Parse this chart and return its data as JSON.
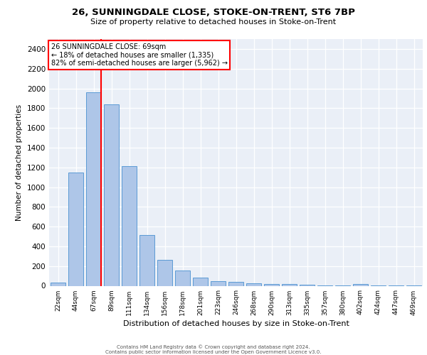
{
  "title": "26, SUNNINGDALE CLOSE, STOKE-ON-TRENT, ST6 7BP",
  "subtitle": "Size of property relative to detached houses in Stoke-on-Trent",
  "xlabel": "Distribution of detached houses by size in Stoke-on-Trent",
  "ylabel": "Number of detached properties",
  "categories": [
    "22sqm",
    "44sqm",
    "67sqm",
    "89sqm",
    "111sqm",
    "134sqm",
    "156sqm",
    "178sqm",
    "201sqm",
    "223sqm",
    "246sqm",
    "268sqm",
    "290sqm",
    "313sqm",
    "335sqm",
    "357sqm",
    "380sqm",
    "402sqm",
    "424sqm",
    "447sqm",
    "469sqm"
  ],
  "values": [
    30,
    1150,
    1960,
    1840,
    1210,
    515,
    265,
    155,
    80,
    48,
    42,
    25,
    20,
    15,
    10,
    5,
    3,
    18,
    3,
    2,
    2
  ],
  "bar_color": "#aec6e8",
  "bar_edge_color": "#5b9bd5",
  "property_line_x": 2.43,
  "annotation_lines": [
    "26 SUNNINGDALE CLOSE: 69sqm",
    "← 18% of detached houses are smaller (1,335)",
    "82% of semi-detached houses are larger (5,962) →"
  ],
  "ylim_max": 2500,
  "yticks": [
    0,
    200,
    400,
    600,
    800,
    1000,
    1200,
    1400,
    1600,
    1800,
    2000,
    2200,
    2400
  ],
  "background_color": "#eaeff7",
  "grid_color": "#ffffff",
  "footer1": "Contains HM Land Registry data © Crown copyright and database right 2024.",
  "footer2": "Contains public sector information licensed under the Open Government Licence v3.0."
}
